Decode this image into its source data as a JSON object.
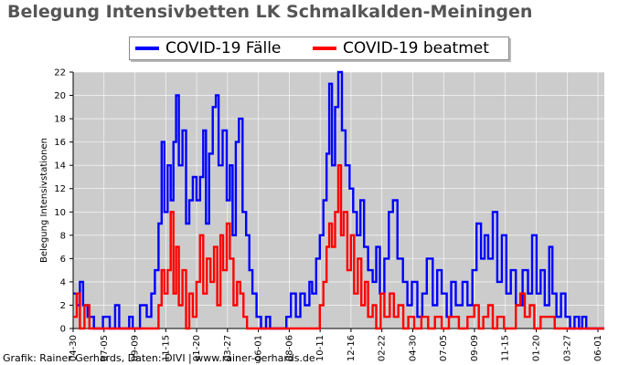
{
  "title": "Belegung Intensivbetten LK Schmalkalden-Meiningen",
  "credit": "Grafik: Rainer Gerhards, Daten: DIVI | www.rainer-gerhards.de",
  "chart_data": {
    "type": "line",
    "ylabel": "Belegung Intensivstationen",
    "xlabel": "",
    "ylim": [
      0,
      22
    ],
    "yticks": [
      0,
      2,
      4,
      6,
      8,
      10,
      12,
      14,
      16,
      18,
      20,
      22
    ],
    "xticks": [
      "04-30",
      "07-05",
      "09-09",
      "11-15",
      "01-20",
      "03-27",
      "06-01",
      "08-06",
      "10-11",
      "12-16",
      "02-22",
      "04-30",
      "07-05",
      "09-09",
      "11-15",
      "01-20",
      "03-27",
      "06-01"
    ],
    "grid": true,
    "background": "#cccccc",
    "legend_position": "top-center",
    "x_start": "2020-04-30",
    "x_end": "2023-07-20",
    "series": [
      {
        "name": "COVID-19 Fälle",
        "color": "#0000ff",
        "points": [
          [
            "2020-04-30",
            3
          ],
          [
            "2020-05-08",
            2
          ],
          [
            "2020-05-15",
            4
          ],
          [
            "2020-05-22",
            2
          ],
          [
            "2020-06-01",
            1
          ],
          [
            "2020-06-15",
            0
          ],
          [
            "2020-07-05",
            1
          ],
          [
            "2020-07-20",
            0
          ],
          [
            "2020-08-01",
            2
          ],
          [
            "2020-08-10",
            0
          ],
          [
            "2020-09-01",
            1
          ],
          [
            "2020-09-09",
            0
          ],
          [
            "2020-09-25",
            2
          ],
          [
            "2020-10-10",
            1
          ],
          [
            "2020-10-20",
            3
          ],
          [
            "2020-10-28",
            5
          ],
          [
            "2020-11-05",
            9
          ],
          [
            "2020-11-12",
            16
          ],
          [
            "2020-11-18",
            10
          ],
          [
            "2020-11-25",
            14
          ],
          [
            "2020-12-02",
            11
          ],
          [
            "2020-12-08",
            16
          ],
          [
            "2020-12-14",
            20
          ],
          [
            "2020-12-20",
            14
          ],
          [
            "2020-12-28",
            17
          ],
          [
            "2021-01-05",
            9
          ],
          [
            "2021-01-12",
            11
          ],
          [
            "2021-01-20",
            13
          ],
          [
            "2021-01-28",
            11
          ],
          [
            "2021-02-05",
            13
          ],
          [
            "2021-02-12",
            17
          ],
          [
            "2021-02-18",
            9
          ],
          [
            "2021-02-25",
            15
          ],
          [
            "2021-03-05",
            19
          ],
          [
            "2021-03-12",
            20
          ],
          [
            "2021-03-18",
            14
          ],
          [
            "2021-03-27",
            17
          ],
          [
            "2021-04-05",
            11
          ],
          [
            "2021-04-12",
            14
          ],
          [
            "2021-04-18",
            8
          ],
          [
            "2021-04-25",
            16
          ],
          [
            "2021-05-02",
            18
          ],
          [
            "2021-05-10",
            10
          ],
          [
            "2021-05-18",
            8
          ],
          [
            "2021-05-25",
            5
          ],
          [
            "2021-06-01",
            3
          ],
          [
            "2021-06-10",
            1
          ],
          [
            "2021-06-20",
            0
          ],
          [
            "2021-07-01",
            1
          ],
          [
            "2021-07-10",
            0
          ],
          [
            "2021-08-06",
            0
          ],
          [
            "2021-08-15",
            1
          ],
          [
            "2021-08-25",
            3
          ],
          [
            "2021-09-05",
            1
          ],
          [
            "2021-09-15",
            3
          ],
          [
            "2021-09-25",
            2
          ],
          [
            "2021-10-05",
            4
          ],
          [
            "2021-10-11",
            3
          ],
          [
            "2021-10-20",
            6
          ],
          [
            "2021-10-28",
            8
          ],
          [
            "2021-11-05",
            11
          ],
          [
            "2021-11-12",
            15
          ],
          [
            "2021-11-18",
            21
          ],
          [
            "2021-11-24",
            14
          ],
          [
            "2021-12-01",
            19
          ],
          [
            "2021-12-08",
            22
          ],
          [
            "2021-12-16",
            17
          ],
          [
            "2021-12-24",
            14
          ],
          [
            "2022-01-02",
            12
          ],
          [
            "2022-01-10",
            10
          ],
          [
            "2022-01-18",
            8
          ],
          [
            "2022-01-26",
            11
          ],
          [
            "2022-02-03",
            7
          ],
          [
            "2022-02-12",
            5
          ],
          [
            "2022-02-22",
            4
          ],
          [
            "2022-03-02",
            7
          ],
          [
            "2022-03-10",
            3
          ],
          [
            "2022-03-20",
            6
          ],
          [
            "2022-03-30",
            10
          ],
          [
            "2022-04-08",
            11
          ],
          [
            "2022-04-18",
            6
          ],
          [
            "2022-04-30",
            4
          ],
          [
            "2022-05-10",
            2
          ],
          [
            "2022-05-20",
            4
          ],
          [
            "2022-06-01",
            1
          ],
          [
            "2022-06-12",
            3
          ],
          [
            "2022-06-22",
            6
          ],
          [
            "2022-07-05",
            2
          ],
          [
            "2022-07-15",
            5
          ],
          [
            "2022-07-25",
            3
          ],
          [
            "2022-08-05",
            1
          ],
          [
            "2022-08-15",
            4
          ],
          [
            "2022-08-25",
            2
          ],
          [
            "2022-09-09",
            4
          ],
          [
            "2022-09-20",
            2
          ],
          [
            "2022-10-01",
            5
          ],
          [
            "2022-10-10",
            9
          ],
          [
            "2022-10-20",
            6
          ],
          [
            "2022-10-28",
            8
          ],
          [
            "2022-11-05",
            6
          ],
          [
            "2022-11-15",
            10
          ],
          [
            "2022-11-25",
            4
          ],
          [
            "2022-12-05",
            8
          ],
          [
            "2022-12-15",
            3
          ],
          [
            "2022-12-25",
            5
          ],
          [
            "2023-01-05",
            2
          ],
          [
            "2023-01-20",
            5
          ],
          [
            "2023-02-01",
            3
          ],
          [
            "2023-02-10",
            8
          ],
          [
            "2023-02-20",
            3
          ],
          [
            "2023-03-01",
            5
          ],
          [
            "2023-03-10",
            2
          ],
          [
            "2023-03-20",
            7
          ],
          [
            "2023-03-27",
            3
          ],
          [
            "2023-04-05",
            1
          ],
          [
            "2023-04-15",
            3
          ],
          [
            "2023-04-25",
            1
          ],
          [
            "2023-05-05",
            0
          ],
          [
            "2023-05-15",
            1
          ],
          [
            "2023-05-25",
            0
          ],
          [
            "2023-06-01",
            1
          ],
          [
            "2023-06-10",
            0
          ],
          [
            "2023-07-20",
            0
          ]
        ]
      },
      {
        "name": "COVID-19 beatmet",
        "color": "#ff0000",
        "points": [
          [
            "2020-04-30",
            1
          ],
          [
            "2020-05-08",
            3
          ],
          [
            "2020-05-15",
            0
          ],
          [
            "2020-05-25",
            2
          ],
          [
            "2020-06-05",
            0
          ],
          [
            "2020-10-28",
            0
          ],
          [
            "2020-11-05",
            2
          ],
          [
            "2020-11-12",
            5
          ],
          [
            "2020-11-18",
            3
          ],
          [
            "2020-11-25",
            5
          ],
          [
            "2020-12-02",
            10
          ],
          [
            "2020-12-08",
            3
          ],
          [
            "2020-12-14",
            7
          ],
          [
            "2020-12-20",
            2
          ],
          [
            "2020-12-28",
            5
          ],
          [
            "2021-01-05",
            0
          ],
          [
            "2021-01-12",
            3
          ],
          [
            "2021-01-20",
            1
          ],
          [
            "2021-01-28",
            4
          ],
          [
            "2021-02-05",
            8
          ],
          [
            "2021-02-12",
            3
          ],
          [
            "2021-02-20",
            6
          ],
          [
            "2021-02-28",
            4
          ],
          [
            "2021-03-08",
            7
          ],
          [
            "2021-03-15",
            2
          ],
          [
            "2021-03-22",
            8
          ],
          [
            "2021-03-28",
            5
          ],
          [
            "2021-04-05",
            9
          ],
          [
            "2021-04-12",
            6
          ],
          [
            "2021-04-20",
            2
          ],
          [
            "2021-04-28",
            4
          ],
          [
            "2021-05-05",
            3
          ],
          [
            "2021-05-12",
            1
          ],
          [
            "2021-05-20",
            0
          ],
          [
            "2021-10-20",
            0
          ],
          [
            "2021-10-28",
            2
          ],
          [
            "2021-11-05",
            4
          ],
          [
            "2021-11-12",
            7
          ],
          [
            "2021-11-18",
            9
          ],
          [
            "2021-11-24",
            7
          ],
          [
            "2021-12-01",
            10
          ],
          [
            "2021-12-08",
            14
          ],
          [
            "2021-12-14",
            8
          ],
          [
            "2021-12-20",
            10
          ],
          [
            "2021-12-28",
            5
          ],
          [
            "2022-01-05",
            8
          ],
          [
            "2022-01-12",
            3
          ],
          [
            "2022-01-20",
            6
          ],
          [
            "2022-01-28",
            2
          ],
          [
            "2022-02-05",
            4
          ],
          [
            "2022-02-12",
            1
          ],
          [
            "2022-02-22",
            2
          ],
          [
            "2022-03-02",
            0
          ],
          [
            "2022-03-12",
            3
          ],
          [
            "2022-03-20",
            1
          ],
          [
            "2022-04-01",
            3
          ],
          [
            "2022-04-10",
            1
          ],
          [
            "2022-04-20",
            2
          ],
          [
            "2022-05-01",
            0
          ],
          [
            "2022-05-12",
            1
          ],
          [
            "2022-05-25",
            0
          ],
          [
            "2022-06-10",
            1
          ],
          [
            "2022-06-25",
            0
          ],
          [
            "2022-07-10",
            1
          ],
          [
            "2022-07-25",
            0
          ],
          [
            "2022-08-10",
            1
          ],
          [
            "2022-09-01",
            0
          ],
          [
            "2022-09-20",
            1
          ],
          [
            "2022-10-05",
            2
          ],
          [
            "2022-10-15",
            0
          ],
          [
            "2022-10-25",
            1
          ],
          [
            "2022-11-05",
            2
          ],
          [
            "2022-11-15",
            0
          ],
          [
            "2022-11-25",
            1
          ],
          [
            "2022-12-10",
            0
          ],
          [
            "2023-01-05",
            2
          ],
          [
            "2023-01-15",
            3
          ],
          [
            "2023-01-25",
            1
          ],
          [
            "2023-02-05",
            2
          ],
          [
            "2023-02-15",
            0
          ],
          [
            "2023-03-01",
            1
          ],
          [
            "2023-03-20",
            1
          ],
          [
            "2023-04-01",
            0
          ],
          [
            "2023-07-20",
            0
          ]
        ]
      }
    ]
  }
}
